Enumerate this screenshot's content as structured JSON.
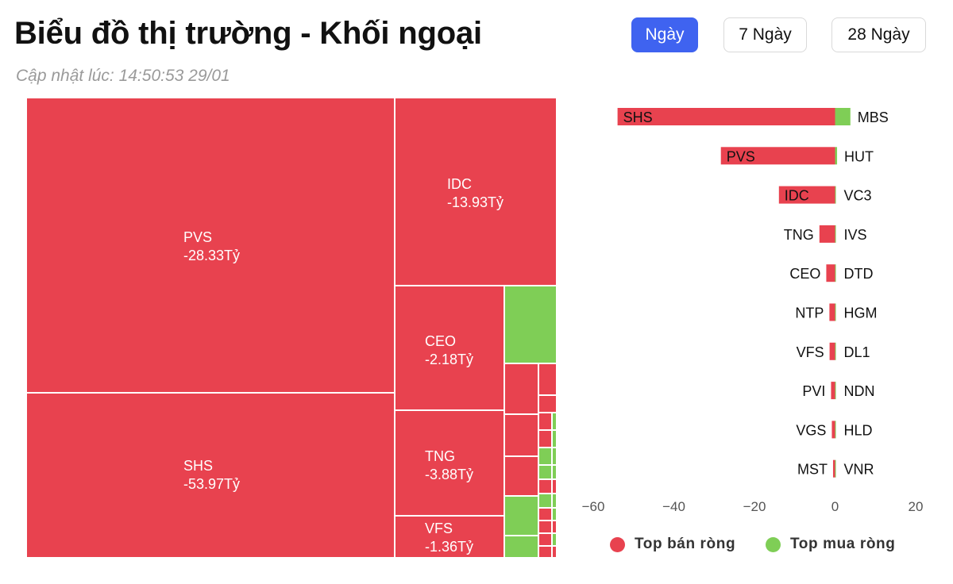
{
  "page": {
    "title": "Biểu đồ thị trường - Khối ngoại",
    "updated": "Cập nhật lúc: 14:50:53 29/01"
  },
  "period_buttons": [
    {
      "label": "Ngày",
      "active": true
    },
    {
      "label": "7 Ngày",
      "active": false
    },
    {
      "label": "28 Ngày",
      "active": false
    }
  ],
  "colors": {
    "sell": "#e8424f",
    "buy": "#7fce56",
    "accent": "#3f63f0"
  },
  "chart_data": [
    {
      "type": "treemap",
      "value_unit": "Tỷ",
      "labeled_tiles": [
        {
          "ticker": "SHS",
          "value": -53.97,
          "label": "-53.97Tỷ"
        },
        {
          "ticker": "PVS",
          "value": -28.33,
          "label": "-28.33Tỷ"
        },
        {
          "ticker": "IDC",
          "value": -13.93,
          "label": "-13.93Tỷ"
        },
        {
          "ticker": "TNG",
          "value": -3.88,
          "label": "-3.88Tỷ"
        },
        {
          "ticker": "CEO",
          "value": -2.18,
          "label": "-2.18Tỷ"
        },
        {
          "ticker": "VFS",
          "value": -1.36,
          "label": "-1.36Tỷ"
        }
      ]
    },
    {
      "type": "bar",
      "orientation": "horizontal",
      "xlim": [
        -60,
        20
      ],
      "xticks": [
        -60,
        -40,
        -20,
        0,
        20
      ],
      "grid": false,
      "legend_position": "bottom",
      "series": [
        {
          "name": "Top bán ròng",
          "color": "#e8424f",
          "categories": [
            "SHS",
            "PVS",
            "IDC",
            "TNG",
            "CEO",
            "NTP",
            "VFS",
            "PVI",
            "VGS",
            "MST"
          ],
          "values": [
            -53.97,
            -28.33,
            -13.93,
            -3.88,
            -2.18,
            -1.4,
            -1.36,
            -1.0,
            -0.8,
            -0.5
          ]
        },
        {
          "name": "Top mua ròng",
          "color": "#7fce56",
          "categories": [
            "MBS",
            "HUT",
            "VC3",
            "IVS",
            "DTD",
            "HGM",
            "DL1",
            "NDN",
            "HLD",
            "VNR"
          ],
          "values": [
            3.8,
            0.5,
            0.2,
            0.2,
            0.1,
            0.1,
            0.1,
            0.1,
            0.1,
            0.1
          ]
        }
      ]
    }
  ]
}
